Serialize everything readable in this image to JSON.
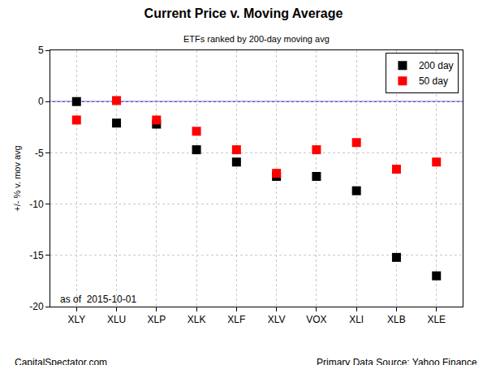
{
  "chart_data": {
    "type": "scatter",
    "title": "Current Price v. Moving Average",
    "subtitle": "ETFs ranked by 200-day moving avg",
    "y_label": "+/- % v. mov avg",
    "categories": [
      "XLY",
      "XLU",
      "XLP",
      "XLK",
      "XLF",
      "XLV",
      "VOX",
      "XLI",
      "XLB",
      "XLE"
    ],
    "series": [
      {
        "name": "200 day",
        "color": "#000000",
        "marker": "square",
        "values": [
          0.0,
          -2.1,
          -2.2,
          -4.7,
          -5.9,
          -7.3,
          -7.3,
          -8.7,
          -15.2,
          -17.0
        ]
      },
      {
        "name": "50 day",
        "color": "#ff0000",
        "marker": "square",
        "values": [
          -1.8,
          0.1,
          -1.8,
          -2.9,
          -4.7,
          -7.0,
          -4.7,
          -4.0,
          -6.6,
          -5.9
        ]
      }
    ],
    "reference_line": 0,
    "ylim": [
      -20,
      5
    ],
    "yticks": [
      -20,
      -15,
      -10,
      -5,
      0,
      5
    ],
    "grid": true,
    "legend": "top right",
    "annotations": [
      "as of  2015-10-01"
    ],
    "footer_left": "CapitalSpectator.com",
    "footer_right": "Primary Data Source: Yahoo Finance"
  }
}
